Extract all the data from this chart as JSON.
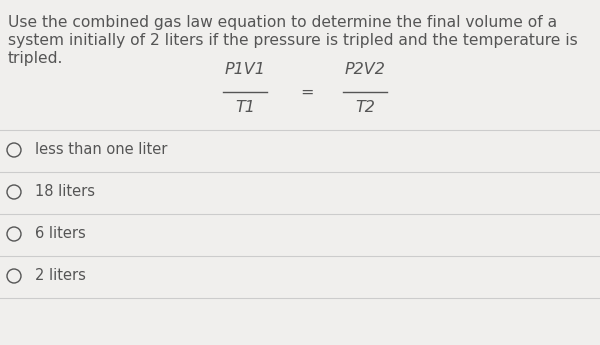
{
  "question_line1": "Use the combined gas law equation to determine the final volume of a",
  "question_line2": "system initially of 2 liters if the pressure is tripled and the temperature is",
  "question_line3": "tripled.",
  "equation_numerator_left": "P1V1",
  "equation_denominator_left": "T1",
  "equation_equals": "=",
  "equation_numerator_right": "P2V2",
  "equation_denominator_right": "T2",
  "choices": [
    "less than one liter",
    "18 liters",
    "6 liters",
    "2 liters"
  ],
  "bg_color": "#f0efed",
  "text_color": "#555555",
  "question_fontsize": 11.2,
  "choice_fontsize": 10.5,
  "eq_fontsize": 11.5,
  "separator_color": "#cccccc"
}
